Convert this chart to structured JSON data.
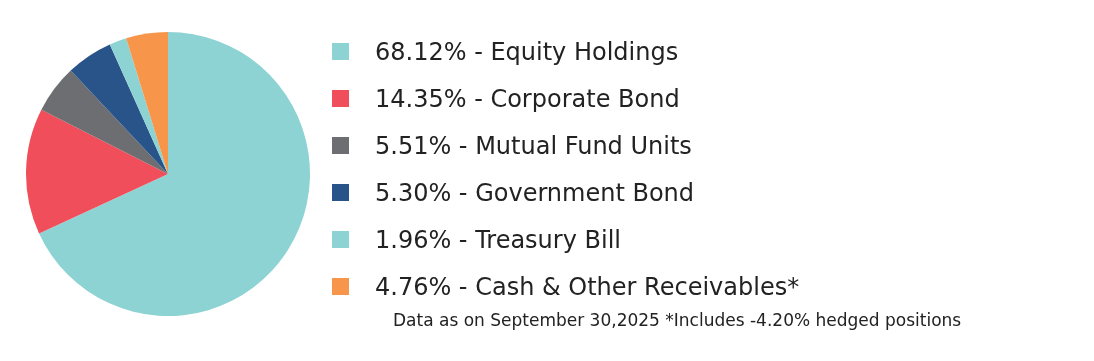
{
  "chart_data": {
    "type": "pie",
    "categories": [
      "Equity Holdings",
      "Corporate Bond",
      "Mutual Fund Units",
      "Government Bond",
      "Treasury Bill",
      "Cash & Other Receivables*"
    ],
    "values": [
      68.12,
      14.35,
      5.51,
      5.3,
      1.96,
      4.76
    ],
    "value_labels": [
      "68.12%",
      "14.35%",
      "5.51%",
      "5.30%",
      "1.96%",
      "4.76%"
    ],
    "colors": [
      "#8ed3d3",
      "#f04e5a",
      "#6d6e72",
      "#29548a",
      "#8ed3d3",
      "#f7964a"
    ],
    "legend": "right",
    "annotations": [
      "Data as on September 30,2025 *Includes -4.20% hedged positions"
    ]
  }
}
